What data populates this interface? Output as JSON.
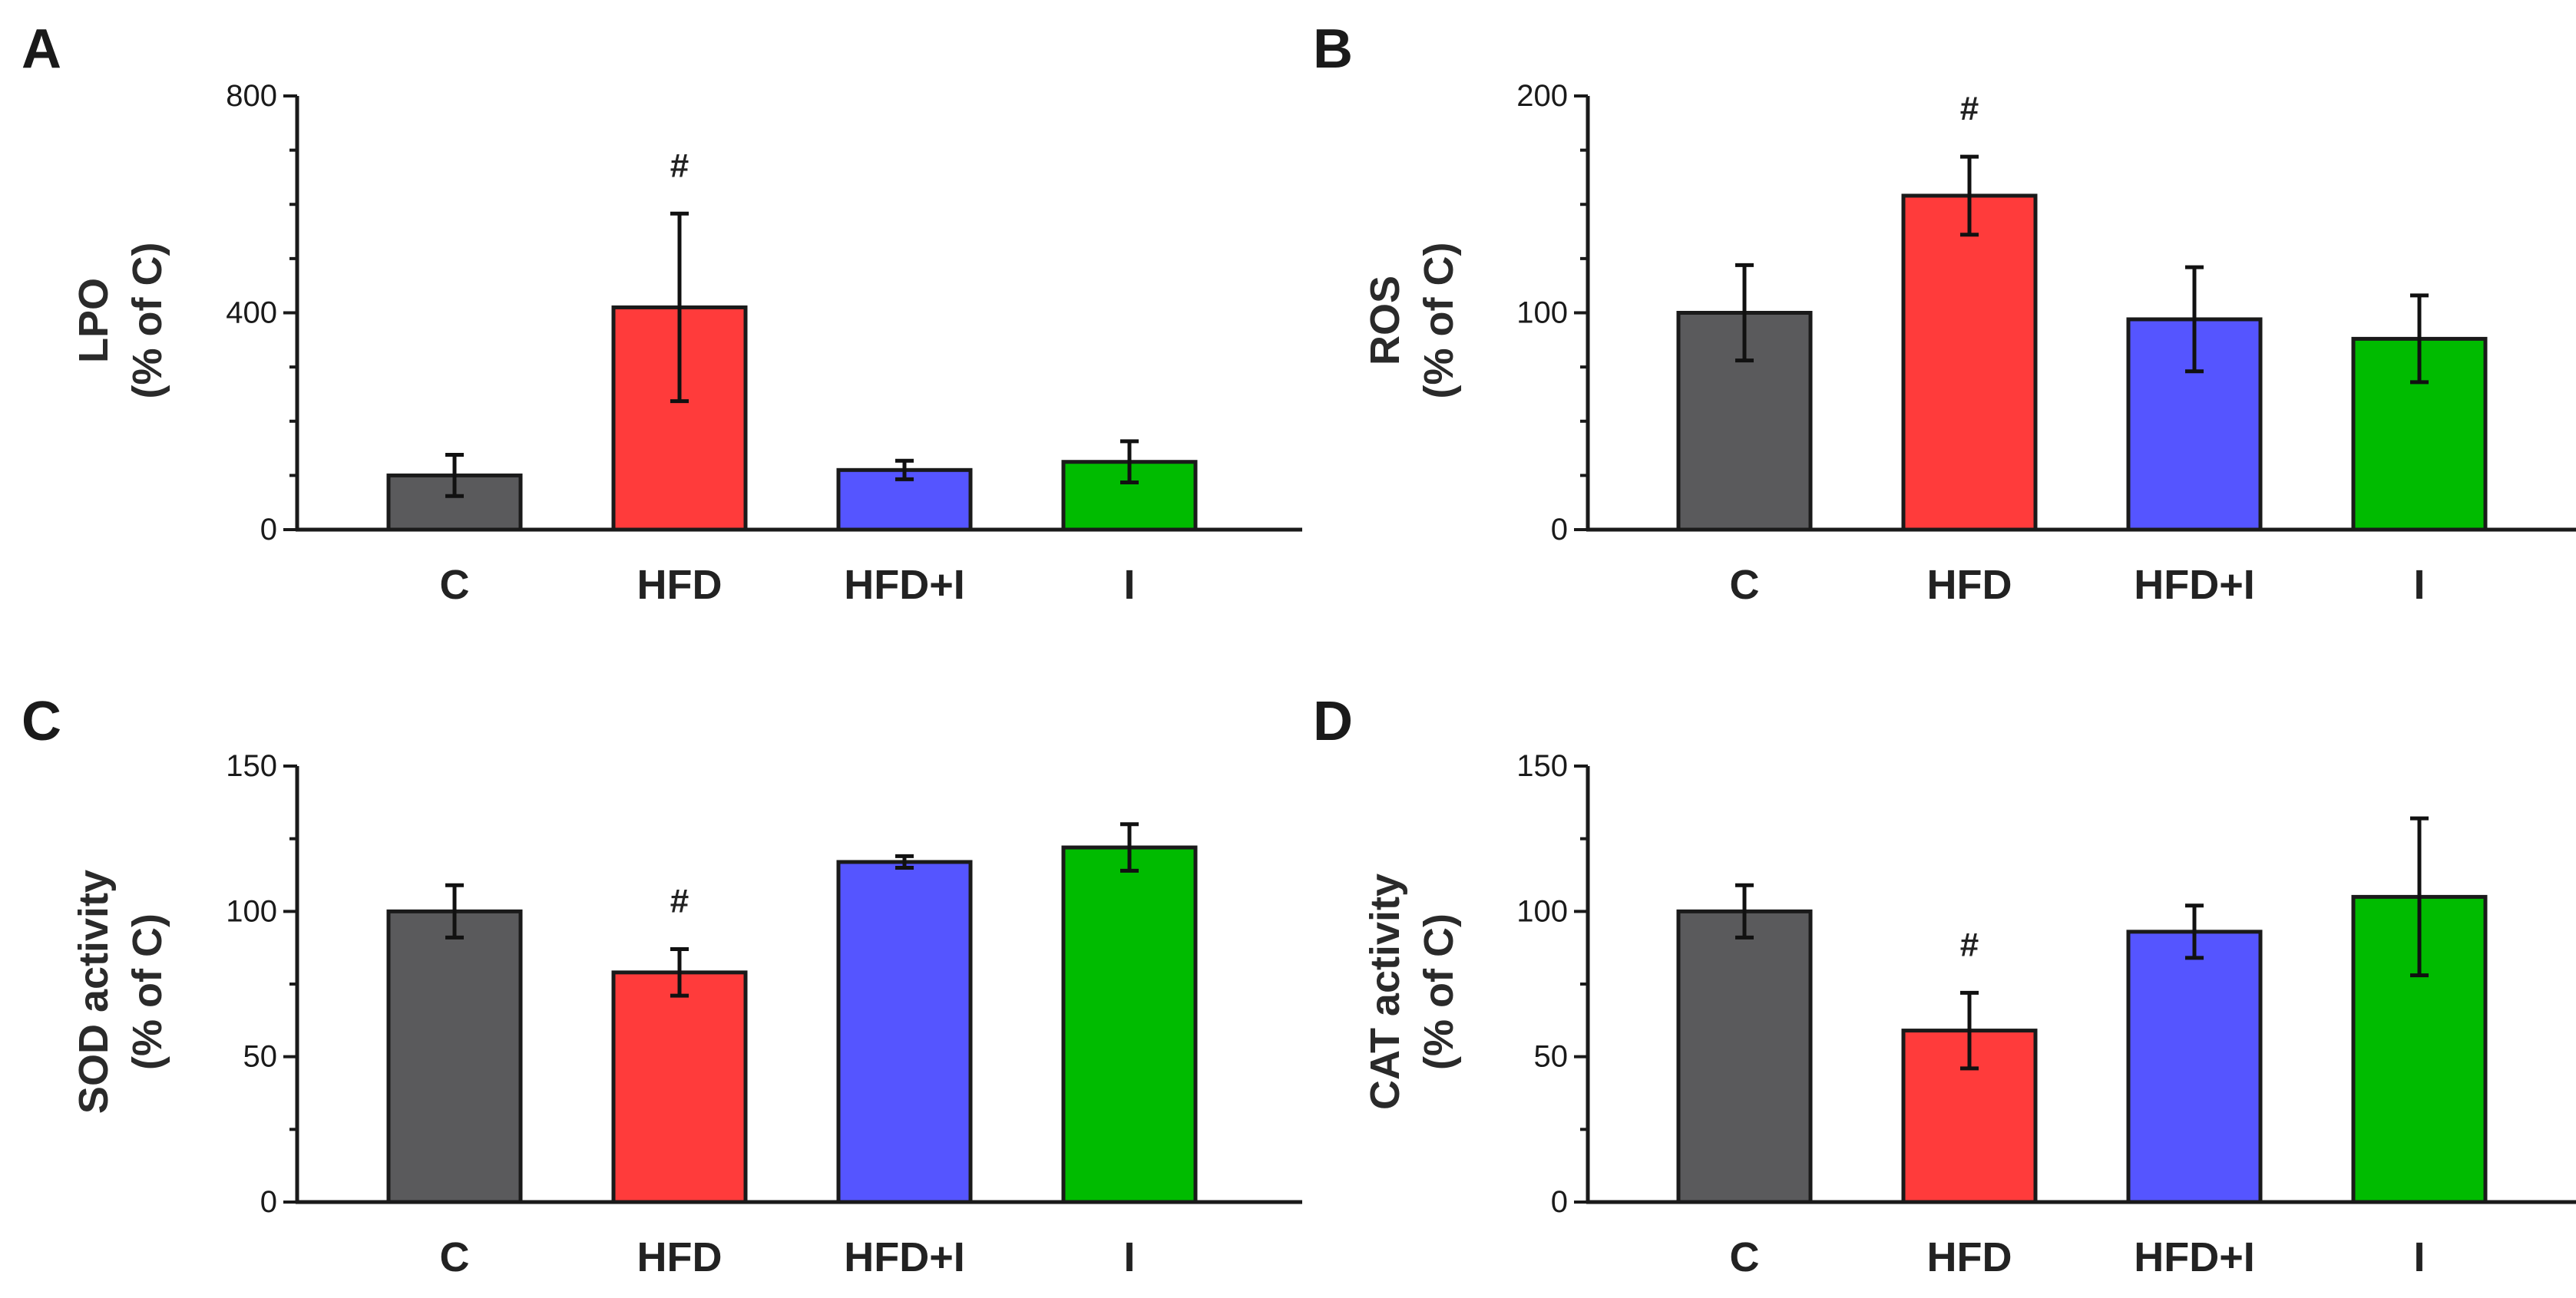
{
  "figure": {
    "background": "#ffffff",
    "axis_color": "#1a1a1a",
    "significance_marker": "#"
  },
  "chart_data": [
    {
      "type": "bar",
      "panel": "A",
      "categories": [
        "C",
        "HFD",
        "HFD+I",
        "I"
      ],
      "values": [
        100,
        410,
        110,
        125
      ],
      "errors": [
        38,
        173,
        17,
        38
      ],
      "ylabel": [
        "LPO",
        "(% of C)"
      ],
      "ylim": [
        0,
        800
      ],
      "yticks": [
        0,
        400,
        800
      ],
      "yminor": [
        100,
        200,
        300,
        500,
        600,
        700
      ],
      "colors": [
        "#5a5a5c",
        "#ff3b3b",
        "#5555ff",
        "#00bb00"
      ],
      "significant": [
        "HFD"
      ]
    },
    {
      "type": "bar",
      "panel": "B",
      "categories": [
        "C",
        "HFD",
        "HFD+I",
        "I"
      ],
      "values": [
        100,
        154,
        97,
        88
      ],
      "errors": [
        22,
        18,
        24,
        20
      ],
      "ylabel": [
        "ROS",
        "(% of C)"
      ],
      "ylim": [
        0,
        200
      ],
      "yticks": [
        0,
        100,
        200
      ],
      "yminor": [
        25,
        50,
        75,
        125,
        150,
        175
      ],
      "colors": [
        "#5a5a5c",
        "#ff3b3b",
        "#5555ff",
        "#00bb00"
      ],
      "significant": [
        "HFD"
      ]
    },
    {
      "type": "bar",
      "panel": "C",
      "categories": [
        "C",
        "HFD",
        "HFD+I",
        "I"
      ],
      "values": [
        100,
        79,
        117,
        122
      ],
      "errors": [
        9,
        8,
        2,
        8
      ],
      "ylabel": [
        "SOD activity",
        "(% of C)"
      ],
      "ylim": [
        0,
        150
      ],
      "yticks": [
        0,
        50,
        100,
        150
      ],
      "yminor": [
        25,
        75,
        125
      ],
      "colors": [
        "#5a5a5c",
        "#ff3b3b",
        "#5555ff",
        "#00bb00"
      ],
      "significant": [
        "HFD"
      ]
    },
    {
      "type": "bar",
      "panel": "D",
      "categories": [
        "C",
        "HFD",
        "HFD+I",
        "I"
      ],
      "values": [
        100,
        59,
        93,
        105
      ],
      "errors": [
        9,
        13,
        9,
        27
      ],
      "ylabel": [
        "CAT activity",
        "(% of C)"
      ],
      "ylim": [
        0,
        150
      ],
      "yticks": [
        0,
        50,
        100,
        150
      ],
      "yminor": [
        25,
        75,
        125
      ],
      "colors": [
        "#5a5a5c",
        "#ff3b3b",
        "#5555ff",
        "#00bb00"
      ],
      "significant": [
        "HFD"
      ]
    }
  ]
}
